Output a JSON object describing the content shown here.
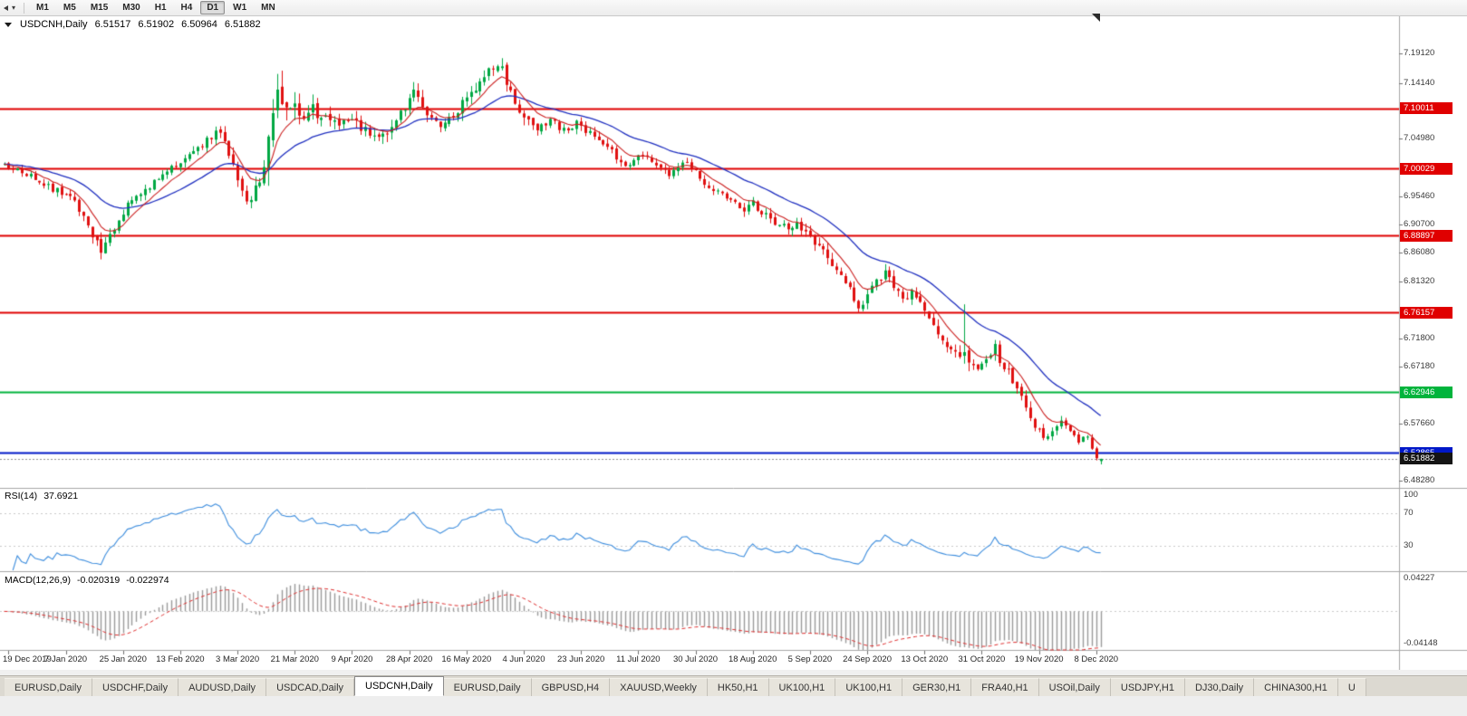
{
  "toolbar": {
    "timeframes": [
      "M1",
      "M5",
      "M15",
      "M30",
      "H1",
      "H4",
      "D1",
      "W1",
      "MN"
    ],
    "active_timeframe": "D1"
  },
  "tabs": {
    "items": [
      "EURUSD,Daily",
      "USDCHF,Daily",
      "AUDUSD,Daily",
      "USDCAD,Daily",
      "USDCNH,Daily",
      "EURUSD,Daily",
      "GBPUSD,H4",
      "XAUUSD,Weekly",
      "HK50,H1",
      "UK100,H1",
      "UK100,H1",
      "GER30,H1",
      "FRA40,H1",
      "USOil,Daily",
      "USDJPY,H1",
      "DJ30,Daily",
      "CHINA300,H1",
      "U"
    ],
    "active_index": 4
  },
  "chart_data": {
    "type": "candlestick",
    "title": "USDCNH,Daily",
    "ohlc": {
      "open": "6.51517",
      "high": "6.51902",
      "low": "6.50964",
      "close": "6.51882"
    },
    "x_axis": {
      "labels": [
        "19 Dec 2019",
        "7 Jan 2020",
        "25 Jan 2020",
        "13 Feb 2020",
        "3 Mar 2020",
        "21 Mar 2020",
        "9 Apr 2020",
        "28 Apr 2020",
        "16 May 2020",
        "4 Jun 2020",
        "23 Jun 2020",
        "11 Jul 2020",
        "30 Jul 2020",
        "18 Aug 2020",
        "5 Sep 2020",
        "24 Sep 2020",
        "13 Oct 2020",
        "31 Oct 2020",
        "19 Nov 2020",
        "8 Dec 2020"
      ],
      "first_candle_index": 1,
      "candle_step": 13,
      "candle_count": 250
    },
    "y_axis": {
      "min": 6.4722,
      "max": 7.2525,
      "tick_labels": [
        {
          "text": "7.19120",
          "value": 7.1912
        },
        {
          "text": "7.14140",
          "value": 7.1414
        },
        {
          "text": "7.04980",
          "value": 7.0498
        },
        {
          "text": "6.95460",
          "value": 6.9546
        },
        {
          "text": "6.90700",
          "value": 6.907
        },
        {
          "text": "6.86080",
          "value": 6.8608
        },
        {
          "text": "6.81320",
          "value": 6.8132
        },
        {
          "text": "6.71800",
          "value": 6.718
        },
        {
          "text": "6.67180",
          "value": 6.6718
        },
        {
          "text": "6.57660",
          "value": 6.5766
        },
        {
          "text": "6.48280",
          "value": 6.4828
        }
      ]
    },
    "levels": [
      {
        "text": "7.10011",
        "value": 7.10011,
        "color": "#e00000",
        "width": 2
      },
      {
        "text": "7.00029",
        "value": 7.00029,
        "color": "#e00000",
        "width": 2
      },
      {
        "text": "6.88897",
        "value": 6.88897,
        "color": "#e00000",
        "width": 2
      },
      {
        "text": "6.76157",
        "value": 6.76157,
        "color": "#e00000",
        "width": 2
      },
      {
        "text": "6.62946",
        "value": 6.62946,
        "color": "#00b43c",
        "width": 2
      },
      {
        "text": "6.52865",
        "value": 6.52865,
        "color": "#0018c8",
        "width": 2
      }
    ],
    "current_price": {
      "text": "6.51882",
      "value": 6.51882
    },
    "series": {
      "close_anchors": [
        [
          0,
          7.006
        ],
        [
          3,
          6.998
        ],
        [
          6,
          6.987
        ],
        [
          9,
          6.973
        ],
        [
          12,
          6.963
        ],
        [
          15,
          6.953
        ],
        [
          17,
          6.934
        ],
        [
          19,
          6.906
        ],
        [
          21,
          6.873
        ],
        [
          22,
          6.859
        ],
        [
          24,
          6.886
        ],
        [
          26,
          6.916
        ],
        [
          28,
          6.94
        ],
        [
          31,
          6.956
        ],
        [
          34,
          6.976
        ],
        [
          37,
          6.993
        ],
        [
          40,
          7.012
        ],
        [
          43,
          7.03
        ],
        [
          46,
          7.046
        ],
        [
          48,
          7.062
        ],
        [
          50,
          7.044
        ],
        [
          52,
          7.004
        ],
        [
          54,
          6.962
        ],
        [
          55,
          6.94
        ],
        [
          57,
          6.968
        ],
        [
          59,
          6.998
        ],
        [
          60,
          7.04
        ],
        [
          61,
          7.09
        ],
        [
          62,
          7.128
        ],
        [
          63,
          7.112
        ],
        [
          64,
          7.088
        ],
        [
          65,
          7.114
        ],
        [
          66,
          7.096
        ],
        [
          68,
          7.082
        ],
        [
          70,
          7.096
        ],
        [
          73,
          7.084
        ],
        [
          76,
          7.07
        ],
        [
          79,
          7.08
        ],
        [
          82,
          7.064
        ],
        [
          85,
          7.054
        ],
        [
          88,
          7.07
        ],
        [
          91,
          7.1
        ],
        [
          93,
          7.124
        ],
        [
          95,
          7.108
        ],
        [
          97,
          7.084
        ],
        [
          99,
          7.07
        ],
        [
          101,
          7.084
        ],
        [
          104,
          7.106
        ],
        [
          107,
          7.13
        ],
        [
          110,
          7.158
        ],
        [
          112,
          7.178
        ],
        [
          113,
          7.164
        ],
        [
          115,
          7.13
        ],
        [
          117,
          7.1
        ],
        [
          119,
          7.08
        ],
        [
          121,
          7.07
        ],
        [
          124,
          7.08
        ],
        [
          127,
          7.064
        ],
        [
          130,
          7.074
        ],
        [
          133,
          7.06
        ],
        [
          136,
          7.044
        ],
        [
          139,
          7.02
        ],
        [
          141,
          7.0
        ],
        [
          143,
          7.01
        ],
        [
          145,
          7.024
        ],
        [
          147,
          7.014
        ],
        [
          149,
          7.0
        ],
        [
          151,
          6.99
        ],
        [
          153,
          7.0
        ],
        [
          155,
          7.01
        ],
        [
          157,
          6.994
        ],
        [
          159,
          6.978
        ],
        [
          162,
          6.96
        ],
        [
          165,
          6.945
        ],
        [
          168,
          6.932
        ],
        [
          170,
          6.942
        ],
        [
          172,
          6.926
        ],
        [
          175,
          6.91
        ],
        [
          178,
          6.9
        ],
        [
          180,
          6.91
        ],
        [
          182,
          6.893
        ],
        [
          184,
          6.877
        ],
        [
          186,
          6.861
        ],
        [
          188,
          6.845
        ],
        [
          190,
          6.821
        ],
        [
          192,
          6.798
        ],
        [
          194,
          6.772
        ],
        [
          196,
          6.79
        ],
        [
          198,
          6.814
        ],
        [
          200,
          6.828
        ],
        [
          202,
          6.806
        ],
        [
          204,
          6.784
        ],
        [
          206,
          6.796
        ],
        [
          208,
          6.778
        ],
        [
          210,
          6.752
        ],
        [
          212,
          6.726
        ],
        [
          214,
          6.706
        ],
        [
          216,
          6.701
        ],
        [
          218,
          6.688
        ],
        [
          220,
          6.676
        ],
        [
          222,
          6.671
        ],
        [
          224,
          6.695
        ],
        [
          225,
          6.709
        ],
        [
          226,
          6.684
        ],
        [
          228,
          6.663
        ],
        [
          230,
          6.639
        ],
        [
          232,
          6.606
        ],
        [
          234,
          6.573
        ],
        [
          236,
          6.553
        ],
        [
          238,
          6.569
        ],
        [
          240,
          6.583
        ],
        [
          242,
          6.563
        ],
        [
          244,
          6.549
        ],
        [
          246,
          6.559
        ],
        [
          247,
          6.536
        ],
        [
          248,
          6.523
        ],
        [
          249,
          6.51882
        ]
      ],
      "volatility_anchors": [
        [
          0,
          0.015
        ],
        [
          16,
          0.02
        ],
        [
          21,
          0.03
        ],
        [
          26,
          0.02
        ],
        [
          45,
          0.02
        ],
        [
          54,
          0.028
        ],
        [
          58,
          0.035
        ],
        [
          60,
          0.065
        ],
        [
          63,
          0.075
        ],
        [
          66,
          0.05
        ],
        [
          70,
          0.04
        ],
        [
          80,
          0.028
        ],
        [
          90,
          0.03
        ],
        [
          100,
          0.028
        ],
        [
          108,
          0.032
        ],
        [
          112,
          0.036
        ],
        [
          116,
          0.032
        ],
        [
          122,
          0.024
        ],
        [
          135,
          0.02
        ],
        [
          150,
          0.018
        ],
        [
          165,
          0.02
        ],
        [
          180,
          0.022
        ],
        [
          190,
          0.026
        ],
        [
          200,
          0.024
        ],
        [
          210,
          0.026
        ],
        [
          216,
          0.03
        ],
        [
          219,
          0.034
        ],
        [
          222,
          0.022
        ],
        [
          227,
          0.028
        ],
        [
          232,
          0.026
        ],
        [
          236,
          0.02
        ],
        [
          242,
          0.016
        ],
        [
          249,
          0.013
        ]
      ],
      "wick_spikes": [
        {
          "index": 218,
          "high": 6.775
        }
      ],
      "last_candle": {
        "open": 6.51517,
        "high": 6.51902,
        "low": 6.50964,
        "close": 6.51882
      }
    },
    "moving_averages": [
      {
        "period": 8,
        "color": "#cc2020"
      },
      {
        "period": 26,
        "color": "#2030c0"
      }
    ],
    "colors": {
      "up": "#00a843",
      "down": "#e01010"
    },
    "rsi": {
      "label": "RSI(14)",
      "value": "37.6921",
      "period": 14,
      "levels": [
        70,
        30
      ],
      "axis_labels": [
        {
          "text": "100",
          "value": 100
        },
        {
          "text": "70",
          "value": 70
        },
        {
          "text": "30",
          "value": 30
        }
      ],
      "color": "#3e8ede",
      "range": [
        0,
        100
      ]
    },
    "macd": {
      "label": "MACD(12,26,9)",
      "main_value": "-0.020319",
      "signal_value": "-0.022974",
      "fast": 12,
      "slow": 26,
      "signal": 9,
      "axis_labels": [
        {
          "text": "0.04227",
          "value": 0.04227
        },
        {
          "text": "-0.04148",
          "value": -0.04148
        }
      ],
      "range": [
        -0.0415,
        0.0423
      ],
      "histogram_color": "#9a9a9a",
      "signal_color": "#e03030"
    }
  }
}
